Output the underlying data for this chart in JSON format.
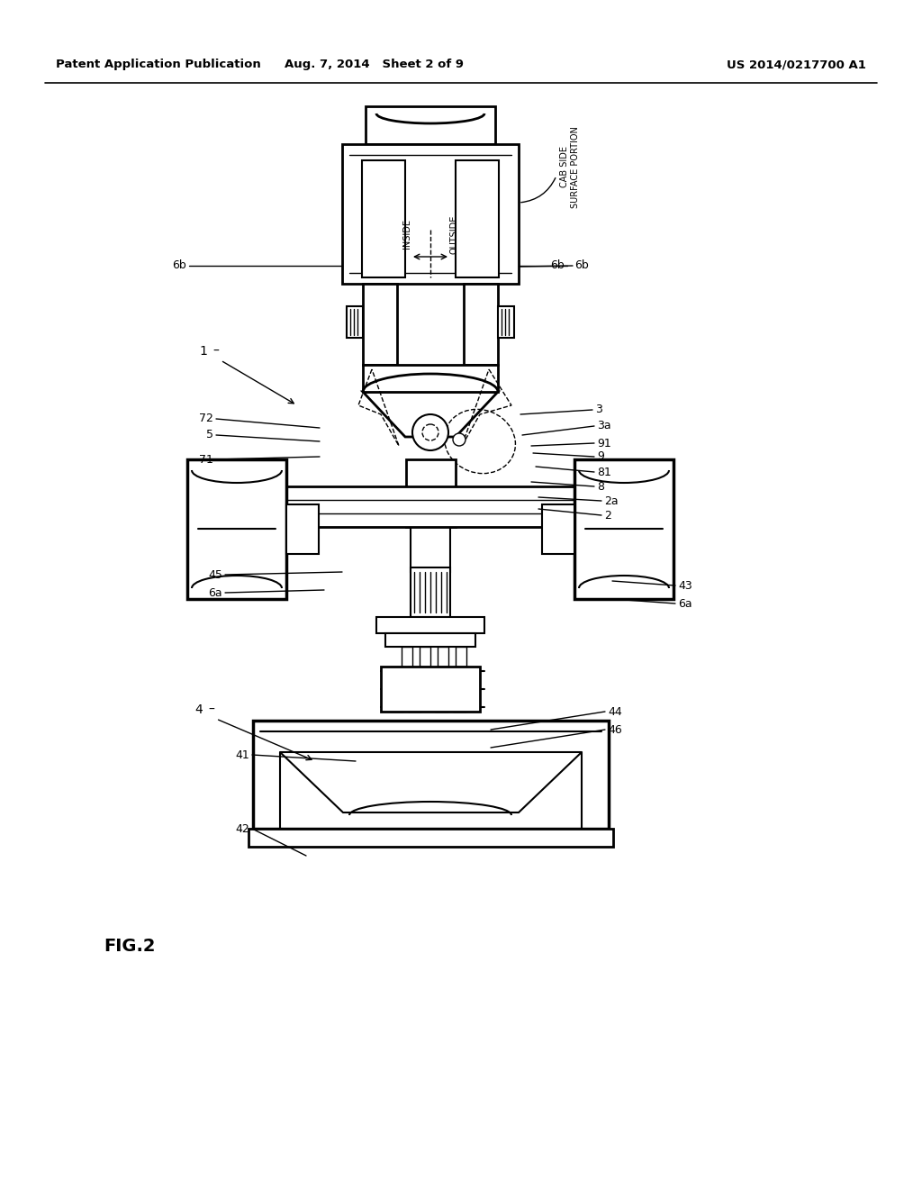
{
  "bg_color": "#ffffff",
  "header_left": "Patent Application Publication",
  "header_mid": "Aug. 7, 2014   Sheet 2 of 9",
  "header_right": "US 2014/0217700 A1",
  "fig_label": "FIG.2"
}
